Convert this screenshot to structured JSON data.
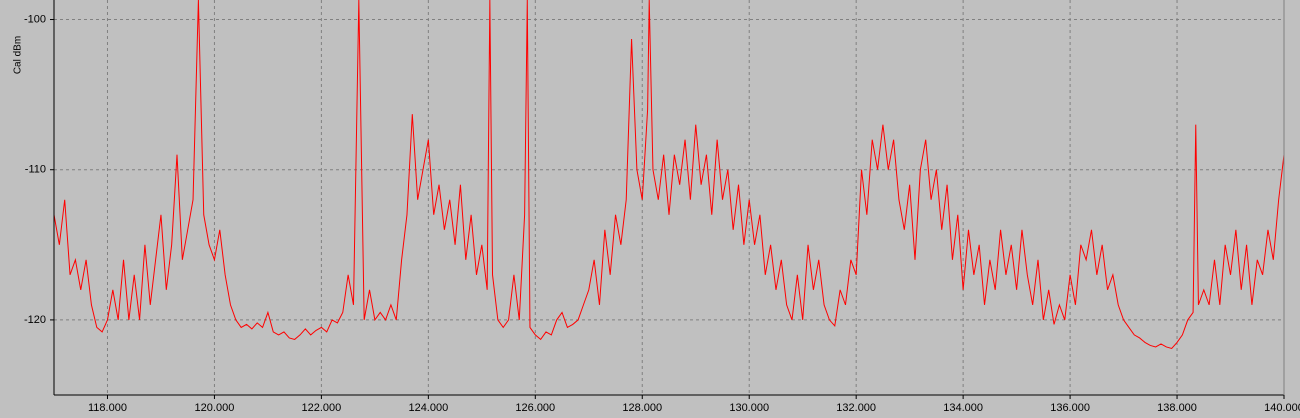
{
  "chart_data": {
    "type": "line",
    "y_label": "Cal dBm",
    "xlim": [
      117,
      140
    ],
    "ylim": [
      -125,
      -98.7
    ],
    "xticks": [
      {
        "value": 118,
        "label": "118.000"
      },
      {
        "value": 120,
        "label": "120.000"
      },
      {
        "value": 122,
        "label": "122.000"
      },
      {
        "value": 124,
        "label": "124.000"
      },
      {
        "value": 126,
        "label": "126.000"
      },
      {
        "value": 128,
        "label": "128.000"
      },
      {
        "value": 130,
        "label": "130.000"
      },
      {
        "value": 132,
        "label": "132.000"
      },
      {
        "value": 134,
        "label": "134.000"
      },
      {
        "value": 136,
        "label": "136.000"
      },
      {
        "value": 138,
        "label": "138.000"
      },
      {
        "value": 140,
        "label": "140.000"
      }
    ],
    "yticks": [
      -100,
      -110,
      -120
    ],
    "grid": true,
    "x": [
      117.0,
      117.1,
      117.2,
      117.3,
      117.4,
      117.5,
      117.6,
      117.7,
      117.8,
      117.9,
      118.0,
      118.1,
      118.2,
      118.3,
      118.4,
      118.5,
      118.6,
      118.7,
      118.8,
      118.9,
      119.0,
      119.1,
      119.2,
      119.3,
      119.4,
      119.5,
      119.6,
      119.7,
      119.8,
      119.9,
      120.0,
      120.1,
      120.2,
      120.3,
      120.4,
      120.5,
      120.6,
      120.7,
      120.8,
      120.9,
      121.0,
      121.1,
      121.2,
      121.3,
      121.4,
      121.5,
      121.6,
      121.7,
      121.8,
      121.9,
      122.0,
      122.1,
      122.2,
      122.3,
      122.4,
      122.5,
      122.6,
      122.7,
      122.8,
      122.9,
      123.0,
      123.1,
      123.2,
      123.3,
      123.4,
      123.5,
      123.6,
      123.7,
      123.8,
      123.9,
      124.0,
      124.1,
      124.2,
      124.3,
      124.4,
      124.5,
      124.6,
      124.7,
      124.8,
      124.9,
      125.0,
      125.1,
      125.15,
      125.2,
      125.3,
      125.4,
      125.5,
      125.6,
      125.7,
      125.8,
      125.85,
      125.9,
      126.0,
      126.1,
      126.2,
      126.3,
      126.4,
      126.5,
      126.6,
      126.7,
      126.8,
      126.9,
      127.0,
      127.1,
      127.2,
      127.3,
      127.4,
      127.5,
      127.6,
      127.7,
      127.8,
      127.9,
      128.0,
      128.1,
      128.13,
      128.2,
      128.3,
      128.4,
      128.5,
      128.6,
      128.7,
      128.8,
      128.9,
      129.0,
      129.1,
      129.2,
      129.3,
      129.4,
      129.5,
      129.6,
      129.7,
      129.8,
      129.9,
      130.0,
      130.1,
      130.2,
      130.3,
      130.4,
      130.5,
      130.6,
      130.7,
      130.8,
      130.9,
      131.0,
      131.1,
      131.2,
      131.3,
      131.4,
      131.5,
      131.6,
      131.7,
      131.8,
      131.9,
      132.0,
      132.1,
      132.2,
      132.3,
      132.4,
      132.5,
      132.6,
      132.7,
      132.8,
      132.9,
      133.0,
      133.1,
      133.2,
      133.3,
      133.4,
      133.5,
      133.6,
      133.7,
      133.8,
      133.9,
      134.0,
      134.1,
      134.2,
      134.3,
      134.4,
      134.5,
      134.6,
      134.7,
      134.8,
      134.9,
      135.0,
      135.1,
      135.2,
      135.3,
      135.4,
      135.5,
      135.6,
      135.7,
      135.8,
      135.9,
      136.0,
      136.1,
      136.2,
      136.3,
      136.4,
      136.5,
      136.6,
      136.7,
      136.8,
      136.9,
      137.0,
      137.1,
      137.2,
      137.3,
      137.4,
      137.5,
      137.6,
      137.7,
      137.8,
      137.9,
      138.0,
      138.1,
      138.2,
      138.3,
      138.35,
      138.4,
      138.5,
      138.6,
      138.7,
      138.8,
      138.9,
      139.0,
      139.1,
      139.2,
      139.3,
      139.4,
      139.5,
      139.6,
      139.7,
      139.8,
      139.9,
      140.0
    ],
    "series": [
      {
        "name": "Cal dBm",
        "color": "#ff0000",
        "values": [
          -113,
          -115,
          -112,
          -117,
          -116,
          -118,
          -116,
          -119,
          -120.5,
          -120.8,
          -120,
          -118,
          -120,
          -116,
          -120,
          -117,
          -120,
          -115,
          -119,
          -116,
          -113,
          -118,
          -115,
          -109,
          -116,
          -114,
          -112,
          -98.7,
          -113,
          -115,
          -116,
          -114,
          -117,
          -119,
          -120,
          -120.5,
          -120.3,
          -120.6,
          -120.2,
          -120.5,
          -119.5,
          -120.8,
          -121,
          -120.8,
          -121.2,
          -121.3,
          -121,
          -120.6,
          -121,
          -120.7,
          -120.5,
          -120.8,
          -120,
          -120.2,
          -119.5,
          -117,
          -119,
          -98.7,
          -120,
          -118,
          -120,
          -119.5,
          -120,
          -119,
          -120,
          -116,
          -113,
          -106.3,
          -112,
          -110,
          -108,
          -113,
          -111,
          -114,
          -112,
          -115,
          -111,
          -116,
          -113,
          -117,
          -115,
          -118,
          -98.7,
          -117,
          -120,
          -120.5,
          -120,
          -117,
          -120,
          -113,
          -98.7,
          -120.5,
          -121,
          -121.3,
          -120.8,
          -121,
          -120,
          -119.5,
          -120.5,
          -120.3,
          -120,
          -119,
          -118,
          -116,
          -119,
          -114,
          -117,
          -113,
          -115,
          -112,
          -101.3,
          -110,
          -112,
          -106,
          -98.7,
          -110,
          -112,
          -109,
          -113,
          -109,
          -111,
          -108,
          -112,
          -107,
          -111,
          -109,
          -113,
          -108,
          -112,
          -110,
          -114,
          -111,
          -115,
          -112,
          -115,
          -113,
          -117,
          -115,
          -118,
          -116,
          -119,
          -120,
          -117,
          -120,
          -115,
          -118,
          -116,
          -119,
          -120,
          -120.4,
          -118,
          -119,
          -116,
          -117,
          -110,
          -113,
          -108,
          -110,
          -107,
          -110,
          -108,
          -112,
          -114,
          -111,
          -116,
          -110,
          -108,
          -112,
          -110,
          -114,
          -111,
          -116,
          -113,
          -118,
          -114,
          -117,
          -115,
          -119,
          -116,
          -118,
          -114,
          -117,
          -115,
          -118,
          -114,
          -117,
          -119,
          -116,
          -120,
          -118,
          -120.3,
          -119,
          -120,
          -117,
          -119,
          -115,
          -116,
          -114,
          -117,
          -115,
          -118,
          -117,
          -119,
          -120,
          -120.5,
          -121,
          -121.2,
          -121.5,
          -121.7,
          -121.8,
          -121.6,
          -121.8,
          -121.9,
          -121.5,
          -121,
          -120,
          -119.5,
          -107,
          -119,
          -118,
          -119,
          -116,
          -119,
          -115,
          -117,
          -114,
          -118,
          -115,
          -119,
          -116,
          -117,
          -114,
          -116,
          -112,
          -109
        ]
      }
    ]
  }
}
